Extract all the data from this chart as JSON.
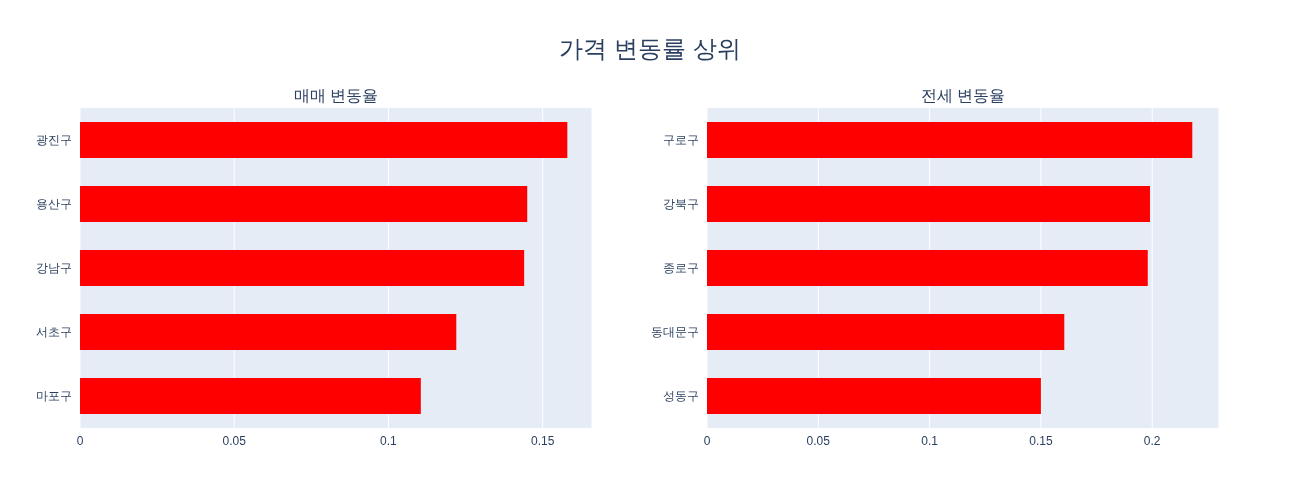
{
  "chart_data": [
    {
      "type": "bar",
      "orientation": "horizontal",
      "title": "매매 변동율",
      "annotations": [
        "가격 변동률 상위"
      ],
      "categories": [
        "광진구",
        "용산구",
        "강남구",
        "서초구",
        "마포구"
      ],
      "values": [
        0.158,
        0.145,
        0.144,
        0.122,
        0.1105
      ],
      "color": "#ff0000",
      "xlim": [
        0,
        0.166
      ],
      "xticks": [
        0,
        0.05,
        0.1,
        0.15
      ],
      "grid": "x",
      "legend": false
    },
    {
      "type": "bar",
      "orientation": "horizontal",
      "title": "전세 변동율",
      "categories": [
        "구로구",
        "강북구",
        "종로구",
        "동대문구",
        "성동구"
      ],
      "values": [
        0.218,
        0.199,
        0.198,
        0.1605,
        0.15
      ],
      "color": "#ff0000",
      "xlim": [
        0,
        0.23
      ],
      "xticks": [
        0,
        0.05,
        0.1,
        0.15,
        0.2
      ],
      "grid": "x",
      "legend": false
    }
  ]
}
